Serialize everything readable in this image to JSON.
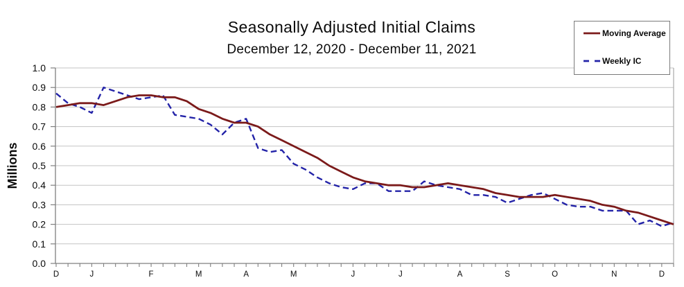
{
  "chart_data": {
    "type": "line",
    "title": "Seasonally Adjusted Initial Claims",
    "subtitle": "December 12, 2020 - December 11, 2021",
    "ylabel": "Millions",
    "ylim": [
      0.0,
      1.0
    ],
    "y_tick_labels": [
      "1.0",
      "0.9",
      "0.8",
      "0.7",
      "0.6",
      "0.5",
      "0.4",
      "0.3",
      "0.2",
      "0.1",
      "0.0"
    ],
    "x_unit": "week",
    "n_points": 53,
    "x_month_tick_labels": [
      {
        "label": "D",
        "week": 1
      },
      {
        "label": "J",
        "week": 4
      },
      {
        "label": "F",
        "week": 9
      },
      {
        "label": "M",
        "week": 13
      },
      {
        "label": "A",
        "week": 17
      },
      {
        "label": "M",
        "week": 21
      },
      {
        "label": "J",
        "week": 26
      },
      {
        "label": "J",
        "week": 30
      },
      {
        "label": "A",
        "week": 35
      },
      {
        "label": "S",
        "week": 39
      },
      {
        "label": "O",
        "week": 43
      },
      {
        "label": "N",
        "week": 48
      },
      {
        "label": "D",
        "week": 52
      }
    ],
    "grid": "horizontal",
    "legend": {
      "position": "top-right",
      "items": [
        "Moving Average",
        "Weekly IC"
      ]
    },
    "series": [
      {
        "name": "Moving Average",
        "style": "solid",
        "color": "#7B1A1A",
        "values": [
          0.8,
          0.81,
          0.82,
          0.82,
          0.81,
          0.83,
          0.85,
          0.86,
          0.86,
          0.85,
          0.85,
          0.83,
          0.79,
          0.77,
          0.74,
          0.72,
          0.72,
          0.7,
          0.66,
          0.63,
          0.6,
          0.57,
          0.54,
          0.5,
          0.47,
          0.44,
          0.42,
          0.41,
          0.4,
          0.4,
          0.39,
          0.39,
          0.4,
          0.41,
          0.4,
          0.39,
          0.38,
          0.36,
          0.35,
          0.34,
          0.34,
          0.34,
          0.35,
          0.34,
          0.33,
          0.32,
          0.3,
          0.29,
          0.27,
          0.26,
          0.24,
          0.22,
          0.2
        ]
      },
      {
        "name": "Weekly IC",
        "style": "dashed",
        "color": "#2323A8",
        "values": [
          0.87,
          0.82,
          0.8,
          0.77,
          0.9,
          0.88,
          0.86,
          0.84,
          0.85,
          0.86,
          0.76,
          0.75,
          0.74,
          0.71,
          0.66,
          0.72,
          0.74,
          0.59,
          0.57,
          0.58,
          0.51,
          0.48,
          0.44,
          0.41,
          0.39,
          0.38,
          0.41,
          0.41,
          0.37,
          0.37,
          0.37,
          0.42,
          0.4,
          0.39,
          0.38,
          0.35,
          0.35,
          0.34,
          0.31,
          0.33,
          0.35,
          0.36,
          0.33,
          0.3,
          0.29,
          0.29,
          0.27,
          0.27,
          0.27,
          0.2,
          0.22,
          0.19,
          0.21
        ]
      }
    ],
    "colors": {
      "gridline": "#c3c3c3",
      "axis": "#7f7f7f",
      "tick": "#7f7f7f",
      "plot_border": "#a9a9a9",
      "tick_label": "#0a0a0a"
    }
  }
}
